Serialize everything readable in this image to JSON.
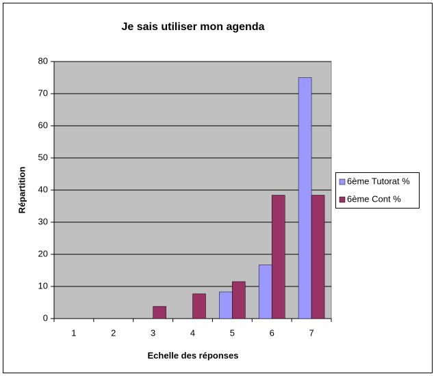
{
  "chart_data": {
    "type": "bar",
    "title": "Je sais utiliser mon agenda",
    "x_label": "Echelle des réponses",
    "y_label": "Répartition",
    "categories": [
      "1",
      "2",
      "3",
      "4",
      "5",
      "6",
      "7"
    ],
    "series": [
      {
        "name": "6ème Tutorat %",
        "color": "#9999ff",
        "values": [
          0,
          0,
          0,
          0,
          8.3,
          16.7,
          75
        ]
      },
      {
        "name": "6ème Cont %",
        "color": "#993366",
        "values": [
          0,
          0,
          3.8,
          7.7,
          11.5,
          38.4,
          38.4
        ]
      }
    ],
    "ylim": [
      0,
      80
    ],
    "yticks": [
      0,
      10,
      20,
      30,
      40,
      50,
      60,
      70,
      80
    ],
    "grid": true,
    "legend": "right"
  }
}
